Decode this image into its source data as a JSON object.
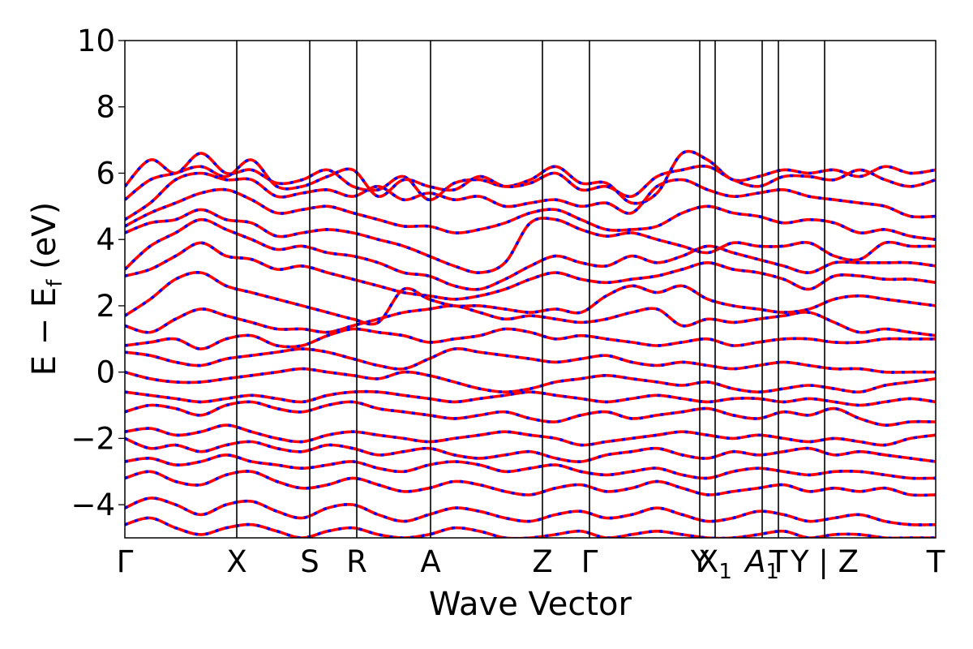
{
  "chart_data": {
    "type": "line",
    "title": "",
    "xlabel": "Wave Vector",
    "ylabel_parts": {
      "main": "E − E",
      "subscript": "f",
      "suffix": " (eV)"
    },
    "ylim": [
      -5,
      10
    ],
    "yticks": [
      {
        "value": 10,
        "label": "10"
      },
      {
        "value": 8,
        "label": "8"
      },
      {
        "value": 6,
        "label": "6"
      },
      {
        "value": 4,
        "label": "4"
      },
      {
        "value": 2,
        "label": "2"
      },
      {
        "value": 0,
        "label": "0"
      },
      {
        "value": -2,
        "label": "−2"
      },
      {
        "value": -4,
        "label": "−4"
      }
    ],
    "xlim": [
      0,
      1
    ],
    "high_symmetry_points": [
      {
        "x": 0.0,
        "label": "Γ"
      },
      {
        "x": 0.138,
        "label": "X"
      },
      {
        "x": 0.228,
        "label": "S"
      },
      {
        "x": 0.286,
        "label": "R"
      },
      {
        "x": 0.377,
        "label": "A"
      },
      {
        "x": 0.515,
        "label": "Z"
      },
      {
        "x": 0.573,
        "label": "Γ"
      },
      {
        "x": 0.709,
        "label": "Y"
      },
      {
        "x": 0.728,
        "label": "X",
        "sub": "1"
      },
      {
        "x": 0.786,
        "label": "A",
        "sub": "1",
        "italic": true
      },
      {
        "x": 0.806,
        "label": "T"
      },
      {
        "x": 0.863,
        "label": "Y | Z"
      },
      {
        "x": 1.0,
        "label": "T"
      }
    ],
    "line_styles": {
      "red": "#ff0000",
      "blue": "#0000ff"
    },
    "series": [
      {
        "values": [
          5.6,
          6.4,
          6.0,
          6.6,
          6.0,
          6.1,
          5.7,
          5.8,
          6.1,
          5.6,
          5.5,
          5.9,
          5.2,
          5.7,
          5.8,
          5.6,
          5.8,
          6.2,
          5.7,
          5.7,
          5.1,
          5.4,
          6.6,
          6.4,
          5.8,
          5.9,
          6.1,
          6.0,
          6.1,
          5.9,
          6.2,
          6.0,
          6.1
        ]
      },
      {
        "values": [
          5.2,
          5.8,
          6.0,
          6.2,
          5.9,
          6.4,
          5.6,
          5.6,
          5.9,
          6.1,
          5.3,
          5.8,
          5.6,
          5.5,
          5.9,
          5.6,
          5.7,
          6.0,
          5.5,
          5.6,
          5.3,
          5.9,
          6.1,
          6.2,
          5.8,
          5.6,
          5.9,
          5.9,
          5.8,
          6.1,
          5.8,
          5.6,
          5.8
        ]
      },
      {
        "values": [
          4.6,
          5.1,
          5.8,
          6.0,
          5.8,
          5.8,
          5.3,
          5.4,
          5.5,
          5.3,
          5.6,
          5.2,
          5.4,
          5.2,
          5.3,
          5.0,
          5.1,
          5.2,
          5.0,
          5.1,
          4.8,
          5.6,
          5.8,
          5.5,
          5.3,
          5.4,
          5.5,
          5.3,
          5.2,
          5.1,
          5.0,
          4.7,
          4.7
        ]
      },
      {
        "values": [
          4.4,
          4.8,
          5.1,
          5.4,
          5.5,
          5.2,
          4.8,
          4.9,
          5.0,
          4.8,
          4.6,
          4.4,
          4.4,
          4.2,
          4.3,
          4.5,
          4.8,
          4.9,
          4.6,
          4.3,
          4.3,
          4.4,
          4.8,
          5.0,
          4.8,
          4.7,
          4.5,
          4.6,
          4.5,
          4.2,
          4.3,
          4.1,
          4.0
        ]
      },
      {
        "values": [
          4.2,
          4.5,
          4.6,
          4.9,
          4.6,
          4.5,
          4.1,
          4.2,
          4.3,
          4.2,
          4.0,
          3.8,
          3.5,
          3.2,
          3.0,
          3.3,
          4.5,
          4.6,
          4.3,
          4.1,
          4.2,
          4.0,
          3.8,
          3.6,
          3.9,
          3.8,
          3.8,
          3.9,
          3.5,
          3.4,
          3.9,
          3.8,
          3.8
        ]
      },
      {
        "values": [
          3.1,
          3.8,
          4.2,
          4.6,
          4.3,
          4.0,
          3.7,
          3.8,
          3.6,
          3.5,
          3.3,
          3.0,
          2.9,
          2.6,
          2.5,
          2.8,
          3.2,
          3.5,
          3.3,
          3.2,
          3.5,
          3.3,
          3.5,
          3.8,
          3.6,
          3.4,
          3.2,
          3.0,
          3.3,
          3.3,
          3.3,
          3.3,
          3.2
        ]
      },
      {
        "values": [
          2.9,
          3.1,
          3.5,
          3.9,
          3.5,
          3.4,
          3.1,
          3.2,
          3.0,
          2.8,
          2.6,
          2.4,
          2.3,
          2.2,
          2.3,
          2.5,
          2.8,
          3.0,
          2.8,
          2.7,
          2.8,
          2.9,
          3.1,
          3.3,
          3.1,
          3.0,
          2.8,
          2.5,
          2.9,
          2.9,
          2.8,
          2.8,
          2.7
        ]
      },
      {
        "values": [
          1.7,
          2.2,
          2.8,
          3.0,
          2.6,
          2.4,
          2.2,
          2.0,
          1.8,
          1.6,
          1.5,
          2.5,
          2.2,
          2.0,
          2.0,
          1.9,
          1.8,
          1.9,
          1.8,
          2.3,
          2.6,
          2.4,
          2.6,
          2.2,
          2.0,
          1.9,
          1.8,
          1.9,
          2.2,
          2.3,
          2.2,
          2.1,
          2.0
        ]
      },
      {
        "values": [
          1.4,
          1.2,
          1.6,
          1.9,
          1.7,
          1.5,
          1.3,
          1.3,
          1.2,
          1.4,
          1.6,
          1.8,
          1.9,
          2.0,
          1.8,
          1.6,
          1.7,
          1.6,
          1.5,
          1.6,
          1.8,
          1.9,
          1.4,
          1.6,
          1.5,
          1.6,
          1.7,
          1.8,
          1.5,
          1.2,
          1.3,
          1.2,
          1.1
        ]
      },
      {
        "values": [
          0.8,
          0.9,
          1.0,
          0.7,
          1.0,
          1.1,
          0.8,
          0.8,
          1.1,
          1.3,
          1.2,
          1.1,
          0.9,
          1.0,
          1.1,
          1.3,
          1.2,
          1.0,
          1.1,
          1.0,
          0.9,
          0.8,
          0.9,
          1.0,
          0.8,
          0.9,
          1.0,
          1.0,
          0.9,
          0.9,
          1.0,
          1.0,
          1.0
        ]
      },
      {
        "values": [
          0.6,
          0.5,
          0.3,
          0.2,
          0.4,
          0.5,
          0.6,
          0.7,
          0.6,
          0.4,
          0.2,
          0.1,
          0.4,
          0.7,
          0.6,
          0.5,
          0.4,
          0.3,
          0.4,
          0.5,
          0.3,
          0.2,
          0.3,
          0.2,
          0.1,
          0.2,
          0.3,
          0.2,
          0.1,
          0.1,
          0.0,
          0.0,
          0.0
        ]
      },
      {
        "values": [
          0.0,
          -0.2,
          -0.3,
          -0.3,
          -0.2,
          -0.1,
          0.0,
          0.1,
          0.0,
          -0.1,
          -0.2,
          0.0,
          -0.1,
          -0.3,
          -0.5,
          -0.6,
          -0.5,
          -0.3,
          -0.2,
          -0.1,
          -0.2,
          -0.3,
          -0.4,
          -0.3,
          -0.5,
          -0.6,
          -0.5,
          -0.4,
          -0.5,
          -0.6,
          -0.4,
          -0.3,
          -0.2
        ]
      },
      {
        "values": [
          -0.6,
          -0.7,
          -0.8,
          -0.9,
          -0.8,
          -0.7,
          -0.8,
          -0.9,
          -0.7,
          -0.6,
          -0.6,
          -0.7,
          -0.8,
          -0.9,
          -0.8,
          -0.7,
          -0.6,
          -0.7,
          -0.8,
          -0.9,
          -0.8,
          -0.7,
          -0.8,
          -0.9,
          -0.8,
          -0.8,
          -0.9,
          -0.8,
          -0.9,
          -1.0,
          -0.9,
          -0.8,
          -0.9
        ]
      },
      {
        "values": [
          -1.2,
          -1.0,
          -1.1,
          -1.3,
          -1.0,
          -0.9,
          -1.1,
          -1.2,
          -1.0,
          -0.9,
          -1.1,
          -1.2,
          -1.3,
          -1.4,
          -1.3,
          -1.2,
          -1.4,
          -1.5,
          -1.3,
          -1.2,
          -1.4,
          -1.3,
          -1.2,
          -1.1,
          -1.3,
          -1.4,
          -1.2,
          -1.3,
          -1.1,
          -1.4,
          -1.6,
          -1.5,
          -1.5
        ]
      },
      {
        "values": [
          -1.8,
          -1.7,
          -1.9,
          -1.8,
          -1.6,
          -1.8,
          -2.0,
          -2.1,
          -1.9,
          -1.8,
          -1.9,
          -2.0,
          -2.1,
          -2.0,
          -1.9,
          -1.8,
          -1.9,
          -2.0,
          -2.2,
          -2.1,
          -2.0,
          -1.9,
          -1.8,
          -1.9,
          -2.0,
          -1.9,
          -2.0,
          -2.1,
          -2.0,
          -2.1,
          -2.2,
          -2.0,
          -1.9
        ]
      },
      {
        "values": [
          -2.0,
          -2.3,
          -2.2,
          -2.4,
          -2.2,
          -2.1,
          -2.3,
          -2.4,
          -2.2,
          -2.3,
          -2.5,
          -2.4,
          -2.3,
          -2.5,
          -2.6,
          -2.5,
          -2.4,
          -2.6,
          -2.7,
          -2.5,
          -2.4,
          -2.3,
          -2.5,
          -2.6,
          -2.4,
          -2.5,
          -2.4,
          -2.3,
          -2.5,
          -2.4,
          -2.5,
          -2.6,
          -2.7
        ]
      },
      {
        "values": [
          -2.7,
          -2.6,
          -2.8,
          -2.7,
          -2.5,
          -2.7,
          -2.8,
          -2.9,
          -2.8,
          -2.7,
          -2.9,
          -3.0,
          -2.8,
          -2.7,
          -2.8,
          -3.0,
          -2.9,
          -2.8,
          -3.0,
          -3.1,
          -3.0,
          -2.9,
          -3.1,
          -3.2,
          -3.0,
          -2.9,
          -3.0,
          -3.1,
          -3.0,
          -3.0,
          -3.1,
          -3.2,
          -3.2
        ]
      },
      {
        "values": [
          -3.2,
          -3.0,
          -3.3,
          -3.4,
          -3.1,
          -3.0,
          -3.3,
          -3.5,
          -3.4,
          -3.2,
          -3.4,
          -3.6,
          -3.5,
          -3.3,
          -3.4,
          -3.6,
          -3.7,
          -3.5,
          -3.4,
          -3.6,
          -3.5,
          -3.3,
          -3.5,
          -3.7,
          -3.6,
          -3.5,
          -3.4,
          -3.6,
          -3.5,
          -3.6,
          -3.5,
          -3.7,
          -3.7
        ]
      },
      {
        "values": [
          -4.1,
          -3.8,
          -4.0,
          -4.3,
          -4.0,
          -3.9,
          -4.2,
          -4.4,
          -4.1,
          -4.0,
          -4.3,
          -4.5,
          -4.3,
          -4.1,
          -4.2,
          -4.4,
          -4.5,
          -4.3,
          -4.2,
          -4.4,
          -4.3,
          -4.1,
          -4.3,
          -4.5,
          -4.4,
          -4.2,
          -4.3,
          -4.5,
          -4.4,
          -4.3,
          -4.5,
          -4.6,
          -4.6
        ]
      },
      {
        "values": [
          -4.6,
          -4.4,
          -4.7,
          -4.9,
          -4.7,
          -4.6,
          -4.8,
          -5.0,
          -4.8,
          -4.7,
          -4.9,
          -5.0,
          -4.9,
          -4.7,
          -4.8,
          -5.0,
          -5.0,
          -4.9,
          -4.8,
          -5.0,
          -4.9,
          -4.8,
          -4.9,
          -5.0,
          -5.0,
          -4.9,
          -4.8,
          -5.0,
          -4.9,
          -4.9,
          -5.0,
          -5.0,
          -5.0
        ]
      }
    ]
  }
}
